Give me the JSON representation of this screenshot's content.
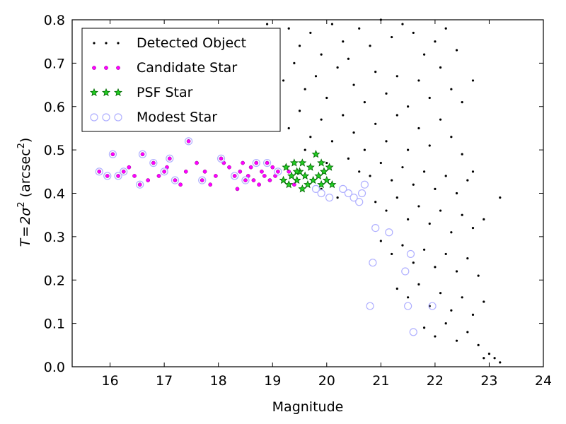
{
  "chart_data": {
    "type": "scatter",
    "xlabel": "Magnitude",
    "ylabel": "T = 2σ² (arcsec²)",
    "ylabel_parts": [
      "T",
      "=",
      "2σ",
      "2",
      " (arcsec",
      "2",
      ")"
    ],
    "xlim": [
      15.3,
      24
    ],
    "ylim": [
      0.0,
      0.8
    ],
    "xticks": [
      16,
      17,
      18,
      19,
      20,
      21,
      22,
      23,
      24
    ],
    "yticks": [
      0.0,
      0.1,
      0.2,
      0.3,
      0.4,
      0.5,
      0.6,
      0.7,
      0.8
    ],
    "grid": false,
    "legend": {
      "placement": "top-left",
      "entries": [
        "Detected Object",
        "Candidate Star",
        "PSF Star",
        "Modest Star"
      ]
    },
    "colors": {
      "detected": "#000000",
      "candidate": "#ff00ff",
      "psf_fill": "#22cc22",
      "psf_edge": "#006400",
      "modest": "#b0b0ff"
    },
    "series": [
      {
        "name": "Detected Object",
        "marker": "dot",
        "points": [
          [
            18.9,
            0.79
          ],
          [
            19.1,
            0.76
          ],
          [
            19.3,
            0.78
          ],
          [
            19.5,
            0.74
          ],
          [
            19.7,
            0.77
          ],
          [
            19.9,
            0.72
          ],
          [
            20.1,
            0.79
          ],
          [
            20.3,
            0.75
          ],
          [
            20.4,
            0.71
          ],
          [
            20.6,
            0.78
          ],
          [
            20.8,
            0.74
          ],
          [
            21.0,
            0.8
          ],
          [
            21.2,
            0.76
          ],
          [
            21.4,
            0.79
          ],
          [
            21.6,
            0.77
          ],
          [
            21.8,
            0.72
          ],
          [
            22.0,
            0.75
          ],
          [
            22.2,
            0.78
          ],
          [
            22.4,
            0.73
          ],
          [
            19.0,
            0.68
          ],
          [
            19.2,
            0.66
          ],
          [
            19.4,
            0.7
          ],
          [
            19.6,
            0.64
          ],
          [
            19.8,
            0.67
          ],
          [
            20.0,
            0.62
          ],
          [
            20.2,
            0.69
          ],
          [
            20.5,
            0.65
          ],
          [
            20.7,
            0.61
          ],
          [
            20.9,
            0.68
          ],
          [
            21.1,
            0.63
          ],
          [
            21.3,
            0.67
          ],
          [
            21.5,
            0.6
          ],
          [
            21.7,
            0.66
          ],
          [
            21.9,
            0.62
          ],
          [
            22.1,
            0.69
          ],
          [
            22.3,
            0.64
          ],
          [
            22.5,
            0.61
          ],
          [
            22.7,
            0.66
          ],
          [
            19.1,
            0.58
          ],
          [
            19.3,
            0.55
          ],
          [
            19.5,
            0.59
          ],
          [
            19.7,
            0.53
          ],
          [
            19.9,
            0.57
          ],
          [
            20.1,
            0.52
          ],
          [
            20.3,
            0.58
          ],
          [
            20.5,
            0.54
          ],
          [
            20.7,
            0.5
          ],
          [
            20.9,
            0.56
          ],
          [
            21.1,
            0.52
          ],
          [
            21.3,
            0.58
          ],
          [
            21.5,
            0.5
          ],
          [
            21.7,
            0.55
          ],
          [
            21.9,
            0.51
          ],
          [
            22.1,
            0.57
          ],
          [
            22.3,
            0.53
          ],
          [
            22.5,
            0.49
          ],
          [
            22.7,
            0.45
          ],
          [
            19.6,
            0.5
          ],
          [
            20.0,
            0.47
          ],
          [
            20.4,
            0.48
          ],
          [
            20.6,
            0.45
          ],
          [
            20.8,
            0.44
          ],
          [
            21.0,
            0.47
          ],
          [
            21.2,
            0.43
          ],
          [
            21.4,
            0.46
          ],
          [
            21.6,
            0.42
          ],
          [
            21.8,
            0.45
          ],
          [
            22.0,
            0.41
          ],
          [
            22.2,
            0.44
          ],
          [
            22.4,
            0.4
          ],
          [
            22.6,
            0.43
          ],
          [
            20.9,
            0.38
          ],
          [
            21.1,
            0.36
          ],
          [
            21.3,
            0.39
          ],
          [
            21.5,
            0.34
          ],
          [
            21.7,
            0.37
          ],
          [
            21.9,
            0.33
          ],
          [
            22.1,
            0.36
          ],
          [
            22.3,
            0.31
          ],
          [
            22.5,
            0.35
          ],
          [
            22.7,
            0.32
          ],
          [
            22.9,
            0.34
          ],
          [
            21.0,
            0.29
          ],
          [
            21.2,
            0.26
          ],
          [
            21.4,
            0.28
          ],
          [
            21.6,
            0.24
          ],
          [
            21.8,
            0.27
          ],
          [
            22.0,
            0.23
          ],
          [
            22.2,
            0.26
          ],
          [
            22.4,
            0.22
          ],
          [
            22.6,
            0.25
          ],
          [
            22.8,
            0.21
          ],
          [
            21.3,
            0.18
          ],
          [
            21.5,
            0.16
          ],
          [
            21.7,
            0.19
          ],
          [
            21.9,
            0.14
          ],
          [
            22.1,
            0.17
          ],
          [
            22.3,
            0.13
          ],
          [
            22.5,
            0.16
          ],
          [
            22.7,
            0.12
          ],
          [
            22.9,
            0.15
          ],
          [
            21.8,
            0.09
          ],
          [
            22.0,
            0.07
          ],
          [
            22.2,
            0.1
          ],
          [
            22.4,
            0.06
          ],
          [
            22.6,
            0.08
          ],
          [
            22.8,
            0.05
          ],
          [
            23.0,
            0.03
          ],
          [
            23.1,
            0.02
          ],
          [
            23.2,
            0.01
          ],
          [
            22.9,
            0.02
          ],
          [
            23.2,
            0.39
          ],
          [
            20.2,
            0.39
          ],
          [
            19.9,
            0.41
          ]
        ]
      },
      {
        "name": "Candidate Star",
        "marker": "magenta-dot",
        "points": [
          [
            15.8,
            0.45
          ],
          [
            15.95,
            0.44
          ],
          [
            16.05,
            0.49
          ],
          [
            16.15,
            0.44
          ],
          [
            16.25,
            0.45
          ],
          [
            16.35,
            0.46
          ],
          [
            16.45,
            0.44
          ],
          [
            16.55,
            0.42
          ],
          [
            16.6,
            0.49
          ],
          [
            16.7,
            0.43
          ],
          [
            16.8,
            0.47
          ],
          [
            16.9,
            0.44
          ],
          [
            17.0,
            0.45
          ],
          [
            17.05,
            0.46
          ],
          [
            17.1,
            0.48
          ],
          [
            17.2,
            0.43
          ],
          [
            17.3,
            0.42
          ],
          [
            17.4,
            0.45
          ],
          [
            17.45,
            0.52
          ],
          [
            17.6,
            0.47
          ],
          [
            17.7,
            0.43
          ],
          [
            17.75,
            0.45
          ],
          [
            17.85,
            0.42
          ],
          [
            17.95,
            0.44
          ],
          [
            18.05,
            0.48
          ],
          [
            18.1,
            0.47
          ],
          [
            18.2,
            0.46
          ],
          [
            18.3,
            0.44
          ],
          [
            18.35,
            0.41
          ],
          [
            18.4,
            0.45
          ],
          [
            18.45,
            0.47
          ],
          [
            18.5,
            0.43
          ],
          [
            18.55,
            0.44
          ],
          [
            18.6,
            0.46
          ],
          [
            18.65,
            0.43
          ],
          [
            18.7,
            0.47
          ],
          [
            18.75,
            0.42
          ],
          [
            18.8,
            0.45
          ],
          [
            18.85,
            0.44
          ],
          [
            18.9,
            0.47
          ],
          [
            18.95,
            0.43
          ],
          [
            19.0,
            0.46
          ],
          [
            19.05,
            0.44
          ],
          [
            19.1,
            0.45
          ],
          [
            19.2,
            0.43
          ],
          [
            19.3,
            0.45
          ],
          [
            19.4,
            0.42
          ]
        ]
      },
      {
        "name": "PSF Star",
        "marker": "star",
        "points": [
          [
            19.2,
            0.43
          ],
          [
            19.25,
            0.46
          ],
          [
            19.3,
            0.42
          ],
          [
            19.35,
            0.44
          ],
          [
            19.4,
            0.47
          ],
          [
            19.45,
            0.43
          ],
          [
            19.5,
            0.45
          ],
          [
            19.55,
            0.41
          ],
          [
            19.6,
            0.44
          ],
          [
            19.65,
            0.42
          ],
          [
            19.7,
            0.46
          ],
          [
            19.75,
            0.43
          ],
          [
            19.8,
            0.49
          ],
          [
            19.85,
            0.44
          ],
          [
            19.9,
            0.42
          ],
          [
            19.95,
            0.45
          ],
          [
            20.0,
            0.43
          ],
          [
            20.05,
            0.46
          ],
          [
            19.55,
            0.47
          ],
          [
            19.45,
            0.45
          ],
          [
            19.9,
            0.47
          ],
          [
            20.1,
            0.42
          ]
        ]
      },
      {
        "name": "Modest Star",
        "marker": "open-circle",
        "points": [
          [
            15.8,
            0.45
          ],
          [
            15.95,
            0.44
          ],
          [
            16.05,
            0.49
          ],
          [
            16.15,
            0.44
          ],
          [
            16.25,
            0.45
          ],
          [
            16.55,
            0.42
          ],
          [
            16.6,
            0.49
          ],
          [
            16.8,
            0.47
          ],
          [
            17.0,
            0.45
          ],
          [
            17.1,
            0.48
          ],
          [
            17.2,
            0.43
          ],
          [
            17.45,
            0.52
          ],
          [
            17.7,
            0.43
          ],
          [
            18.05,
            0.48
          ],
          [
            18.3,
            0.44
          ],
          [
            18.5,
            0.43
          ],
          [
            18.7,
            0.47
          ],
          [
            18.9,
            0.47
          ],
          [
            19.1,
            0.45
          ],
          [
            19.8,
            0.41
          ],
          [
            19.9,
            0.4
          ],
          [
            20.05,
            0.39
          ],
          [
            20.3,
            0.41
          ],
          [
            20.4,
            0.4
          ],
          [
            20.5,
            0.39
          ],
          [
            20.6,
            0.38
          ],
          [
            20.65,
            0.4
          ],
          [
            20.7,
            0.42
          ],
          [
            20.8,
            0.14
          ],
          [
            20.85,
            0.24
          ],
          [
            20.9,
            0.32
          ],
          [
            21.15,
            0.31
          ],
          [
            21.45,
            0.22
          ],
          [
            21.5,
            0.14
          ],
          [
            21.55,
            0.26
          ],
          [
            21.6,
            0.08
          ],
          [
            21.95,
            0.14
          ]
        ]
      }
    ]
  }
}
